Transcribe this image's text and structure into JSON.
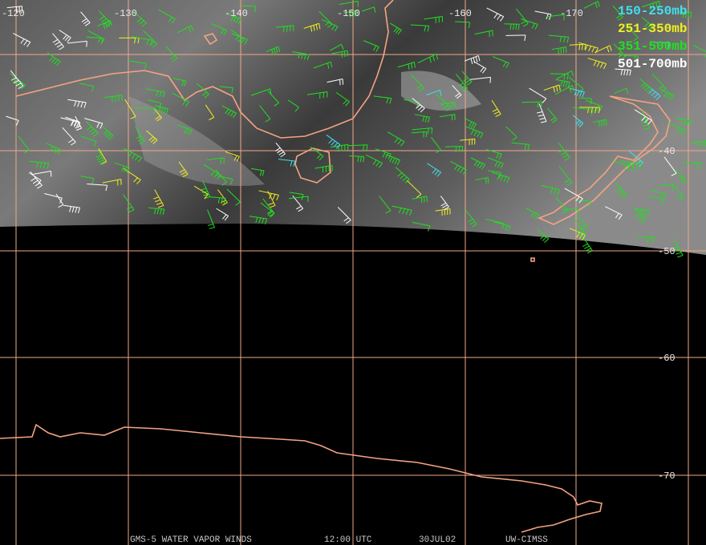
{
  "map": {
    "longitude_labels": [
      "-120",
      "-130",
      "-140",
      "-150",
      "-160",
      "-170"
    ],
    "latitude_labels": [
      "-40",
      "-50",
      "-60",
      "-70"
    ],
    "legend": [
      "150-250mb",
      "251-350mb",
      "351-500mb",
      "501-700mb"
    ],
    "footer": [
      "GMS-5 WATER VAPOR WINDS",
      "12:00 UTC",
      "30JUL02",
      "UW-CIMSS"
    ]
  }
}
